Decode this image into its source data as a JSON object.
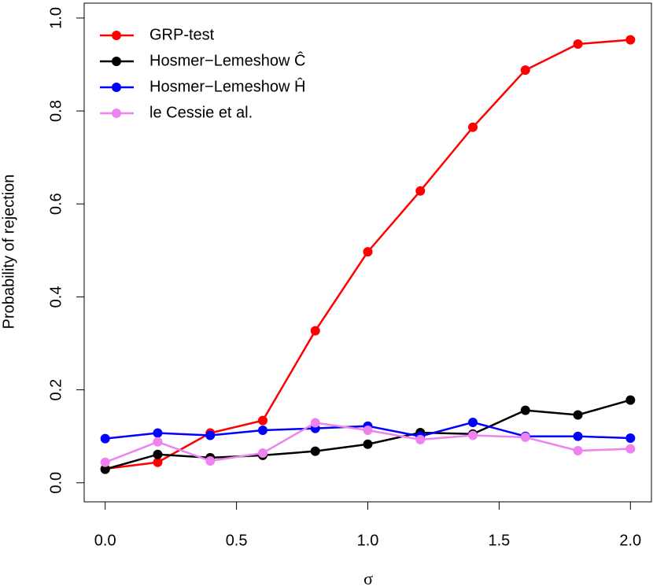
{
  "chart_data": {
    "type": "line",
    "x_label": "σ",
    "y_label": "Probability of rejection",
    "x": [
      0,
      0.2,
      0.4,
      0.6,
      0.8,
      1.0,
      1.2,
      1.4,
      1.6,
      1.8,
      2.0
    ],
    "series": [
      {
        "name": "GRP-test",
        "color": "#ff0000",
        "values": [
          0.03,
          0.044,
          0.107,
          0.134,
          0.327,
          0.497,
          0.628,
          0.765,
          0.888,
          0.944,
          0.953
        ]
      },
      {
        "name": "Hosmer−Lemeshow Ĉ",
        "color": "#000000",
        "values": [
          0.029,
          0.061,
          0.054,
          0.059,
          0.068,
          0.083,
          0.108,
          0.105,
          0.156,
          0.146,
          0.178
        ]
      },
      {
        "name": "Hosmer−Lemeshow Ĥ",
        "color": "#0000ff",
        "values": [
          0.095,
          0.107,
          0.102,
          0.113,
          0.117,
          0.122,
          0.1,
          0.13,
          0.1,
          0.1,
          0.096
        ]
      },
      {
        "name": "le Cessie et al.",
        "color": "#ee82ee",
        "values": [
          0.044,
          0.088,
          0.047,
          0.064,
          0.129,
          0.113,
          0.093,
          0.102,
          0.098,
          0.069,
          0.073
        ]
      }
    ],
    "xlim": [
      -0.08,
      2.08
    ],
    "ylim": [
      -0.041,
      1.032
    ],
    "xticks": [
      {
        "value": 0,
        "label": "0.0"
      },
      0.5,
      {
        "value": 1,
        "label": "1.0"
      },
      1.5,
      {
        "value": 2,
        "label": "2.0"
      }
    ],
    "yticks": [
      {
        "value": 0,
        "label": "0.0"
      },
      0.2,
      0.4,
      0.6,
      0.8,
      {
        "value": 1,
        "label": "1.0"
      }
    ],
    "grid": false,
    "legend": "top-left"
  }
}
